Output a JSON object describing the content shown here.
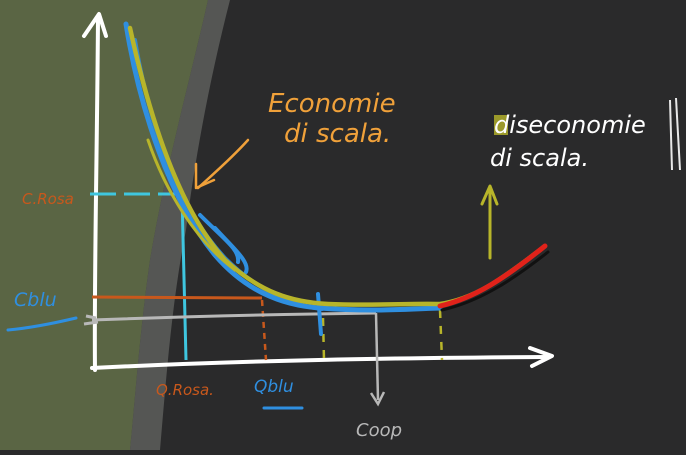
{
  "annotations": {
    "economie": [
      "Economie",
      "di scala."
    ],
    "diseconomie": [
      "diseconomie",
      "di scala."
    ]
  },
  "axis_labels": {
    "c_rosa": "C.Rosa",
    "c_blu": "Cblu",
    "q_rosa": "Q.Rosa.",
    "q_blu": "Qblu",
    "coop": "Coop"
  },
  "colors": {
    "board": "#2a2a2b",
    "board_left": "#5a6544",
    "ink": "#ffffff",
    "orange": "#f0a13a",
    "blue": "#2f8fe0",
    "light_blue": "#3fc6e0",
    "olive": "#b8b52a",
    "red": "#e0221a",
    "brown": "#c8581c",
    "gray": "#b8b8b8"
  }
}
